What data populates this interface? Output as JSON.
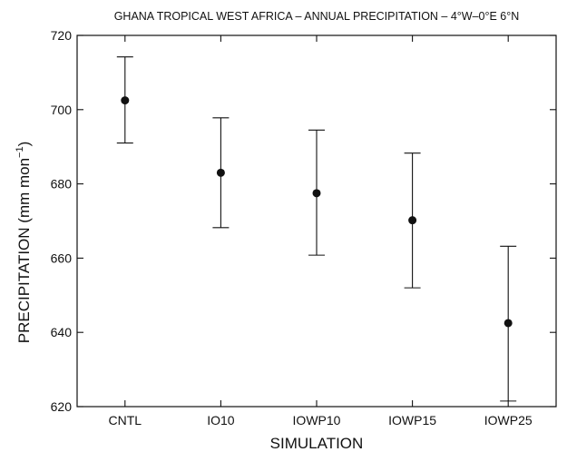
{
  "chart_data": {
    "type": "scatter",
    "title": "GHANA TROPICAL WEST AFRICA – ANNUAL PRECIPITATION – 4°W–0°E 6°N",
    "xlabel": "SIMULATION",
    "ylabel": "PRECIPITATION (mm mon",
    "ylabel_superscript": "−1",
    "ylabel_suffix": ")",
    "categories": [
      "CNTL",
      "IO10",
      "IOWP10",
      "IOWP15",
      "IOWP25"
    ],
    "values": [
      702.5,
      683.0,
      677.5,
      670.2,
      642.5
    ],
    "error_low": [
      691.0,
      668.2,
      660.8,
      652.0,
      621.5
    ],
    "error_high": [
      714.2,
      697.8,
      694.5,
      688.3,
      663.2
    ],
    "ylim": [
      620,
      720
    ],
    "yticks": [
      620,
      640,
      660,
      680,
      700,
      720
    ],
    "grid": false
  }
}
